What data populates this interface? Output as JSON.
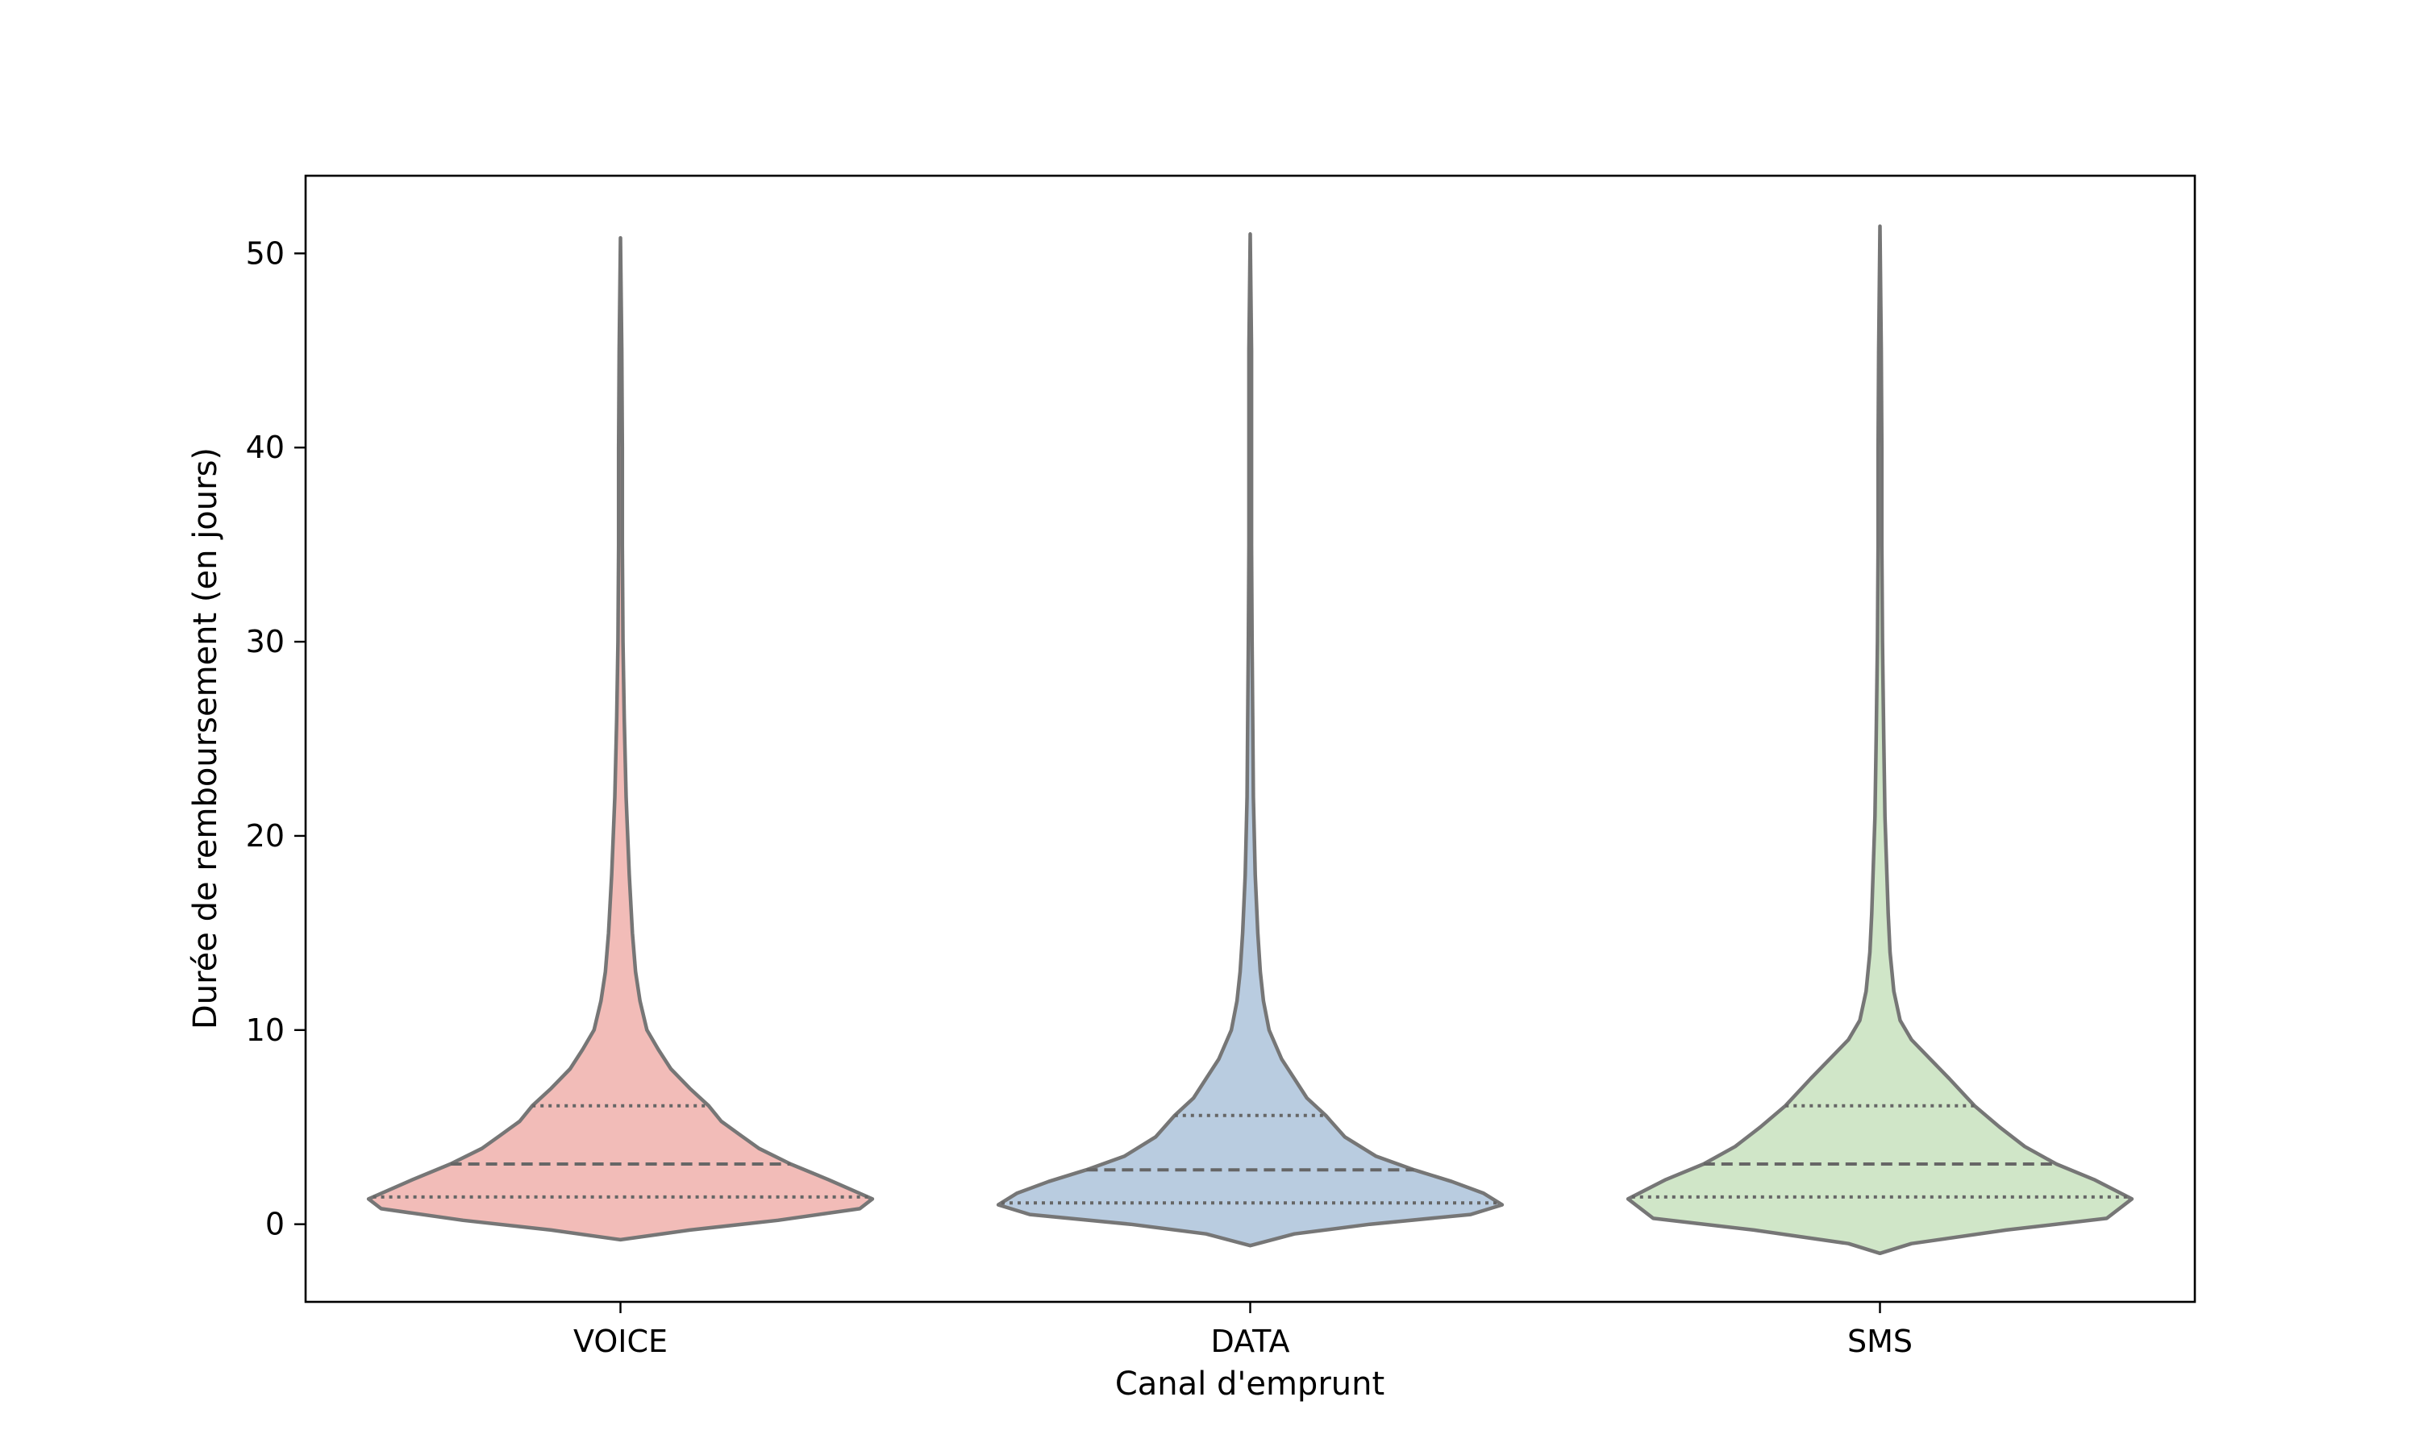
{
  "chart_data": {
    "type": "violin",
    "xlabel": "Canal d'emprunt",
    "ylabel": "Durée de remboursement (en jours)",
    "categories": [
      "VOICE",
      "DATA",
      "SMS"
    ],
    "ylim": [
      -4,
      54
    ],
    "yticks": [
      0,
      10,
      20,
      30,
      40,
      50
    ],
    "grid": false,
    "inner": "quartile",
    "colors": [
      "#f2bcb8",
      "#b9cce0",
      "#d0e6c8"
    ],
    "edge_color": "#767676",
    "series": [
      {
        "category": "VOICE",
        "min": -0.8,
        "max": 50.8,
        "q1": 1.4,
        "median": 3.1,
        "q3": 6.1,
        "max_half_width": 0.4,
        "density": [
          [
            -0.8,
            0.0
          ],
          [
            -0.3,
            0.11
          ],
          [
            0.2,
            0.25
          ],
          [
            0.8,
            0.38
          ],
          [
            1.3,
            0.4
          ],
          [
            2.3,
            0.33
          ],
          [
            3.1,
            0.27
          ],
          [
            3.9,
            0.22
          ],
          [
            4.6,
            0.19
          ],
          [
            5.3,
            0.16
          ],
          [
            6.1,
            0.14
          ],
          [
            7.0,
            0.11
          ],
          [
            8.0,
            0.08
          ],
          [
            9.0,
            0.06
          ],
          [
            10.0,
            0.042
          ],
          [
            11.5,
            0.031
          ],
          [
            13.0,
            0.024
          ],
          [
            15.0,
            0.019
          ],
          [
            18.0,
            0.014
          ],
          [
            22.0,
            0.009
          ],
          [
            26.0,
            0.006
          ],
          [
            30.0,
            0.004
          ],
          [
            35.0,
            0.003
          ],
          [
            40.0,
            0.003
          ],
          [
            45.0,
            0.002
          ],
          [
            50.8,
            0.0
          ]
        ]
      },
      {
        "category": "DATA",
        "min": -1.1,
        "max": 51.0,
        "q1": 1.1,
        "median": 2.8,
        "q3": 5.6,
        "max_half_width": 0.4,
        "density": [
          [
            -1.1,
            0.0
          ],
          [
            -0.5,
            0.07
          ],
          [
            0.0,
            0.19
          ],
          [
            0.5,
            0.35
          ],
          [
            1.0,
            0.4
          ],
          [
            1.6,
            0.37
          ],
          [
            2.2,
            0.32
          ],
          [
            2.8,
            0.26
          ],
          [
            3.5,
            0.2
          ],
          [
            4.5,
            0.15
          ],
          [
            5.6,
            0.12
          ],
          [
            6.5,
            0.09
          ],
          [
            7.5,
            0.07
          ],
          [
            8.5,
            0.05
          ],
          [
            10.0,
            0.03
          ],
          [
            11.5,
            0.021
          ],
          [
            13.0,
            0.016
          ],
          [
            15.0,
            0.012
          ],
          [
            18.0,
            0.008
          ],
          [
            22.0,
            0.005
          ],
          [
            26.0,
            0.004
          ],
          [
            30.0,
            0.003
          ],
          [
            35.0,
            0.002
          ],
          [
            40.0,
            0.002
          ],
          [
            45.0,
            0.002
          ],
          [
            51.0,
            0.0
          ]
        ]
      },
      {
        "category": "SMS",
        "min": -1.5,
        "max": 51.4,
        "q1": 1.4,
        "median": 3.1,
        "q3": 6.1,
        "max_half_width": 0.4,
        "density": [
          [
            -1.5,
            0.0
          ],
          [
            -1.0,
            0.05
          ],
          [
            -0.3,
            0.2
          ],
          [
            0.3,
            0.36
          ],
          [
            1.3,
            0.4
          ],
          [
            2.3,
            0.34
          ],
          [
            3.1,
            0.28
          ],
          [
            4.0,
            0.23
          ],
          [
            5.0,
            0.19
          ],
          [
            6.1,
            0.15
          ],
          [
            7.5,
            0.11
          ],
          [
            8.5,
            0.08
          ],
          [
            9.5,
            0.05
          ],
          [
            10.5,
            0.032
          ],
          [
            12.0,
            0.022
          ],
          [
            14.0,
            0.016
          ],
          [
            16.0,
            0.013
          ],
          [
            18.0,
            0.011
          ],
          [
            21.0,
            0.008
          ],
          [
            25.0,
            0.006
          ],
          [
            30.0,
            0.004
          ],
          [
            35.0,
            0.003
          ],
          [
            40.0,
            0.003
          ],
          [
            45.0,
            0.002
          ],
          [
            51.4,
            0.0
          ]
        ]
      }
    ]
  }
}
